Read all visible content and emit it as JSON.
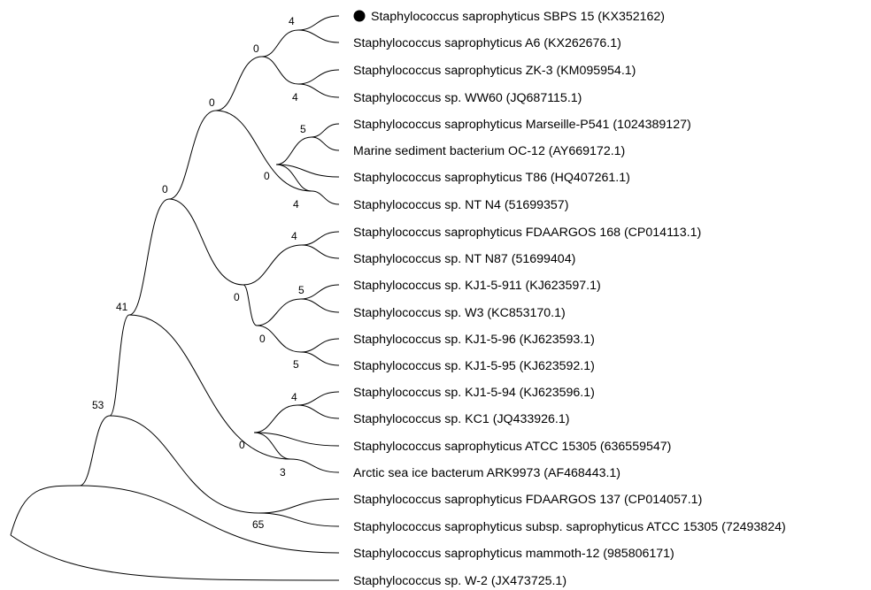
{
  "tree": {
    "marker_color": "#000000",
    "leaves": [
      {
        "label": "Staphylococcus saprophyticus SBPS 15 (KX352162)",
        "marked": true
      },
      {
        "label": "Staphylococcus saprophyticus A6 (KX262676.1)"
      },
      {
        "label": "Staphylococcus saprophyticus ZK-3 (KM095954.1)"
      },
      {
        "label": "Staphylococcus sp. WW60 (JQ687115.1)"
      },
      {
        "label": "Staphylococcus saprophyticus Marseille-P541 (1024389127)"
      },
      {
        "label": "Marine sediment bacterium OC-12 (AY669172.1)"
      },
      {
        "label": "Staphylococcus saprophyticus T86 (HQ407261.1)"
      },
      {
        "label": "Staphylococcus sp. NT N4 (51699357)"
      },
      {
        "label": "Staphylococcus saprophyticus FDAARGOS 168 (CP014113.1)"
      },
      {
        "label": "Staphylococcus sp. NT N87 (51699404)"
      },
      {
        "label": "Staphylococcus sp. KJ1-5-911 (KJ623597.1)"
      },
      {
        "label": "Staphylococcus sp. W3 (KC853170.1)"
      },
      {
        "label": "Staphylococcus sp. KJ1-5-96 (KJ623593.1)"
      },
      {
        "label": "Staphylococcus sp. KJ1-5-95 (KJ623592.1)"
      },
      {
        "label": "Staphylococcus sp. KJ1-5-94 (KJ623596.1)"
      },
      {
        "label": "Staphylococcus sp. KC1 (JQ433926.1)"
      },
      {
        "label": "Staphylococcus saprophyticus ATCC 15305 (636559547)"
      },
      {
        "label": "Arctic sea ice bacterum ARK9973 (AF468443.1)"
      },
      {
        "label": "Staphylococcus saprophyticus FDAARGOS 137 (CP014057.1)"
      },
      {
        "label": "Staphylococcus saprophyticus subsp. saprophyticus ATCC 15305 (72493824)"
      },
      {
        "label": "Staphylococcus saprophyticus mammoth-12 (985806171)"
      },
      {
        "label": "Staphylococcus sp. W-2 (JX473725.1)"
      }
    ],
    "support_values": [
      "4",
      "0",
      "4",
      "0",
      "5",
      "0",
      "4",
      "0",
      "4",
      "0",
      "5",
      "0",
      "5",
      "41",
      "4",
      "0",
      "3",
      "53",
      "65"
    ]
  }
}
